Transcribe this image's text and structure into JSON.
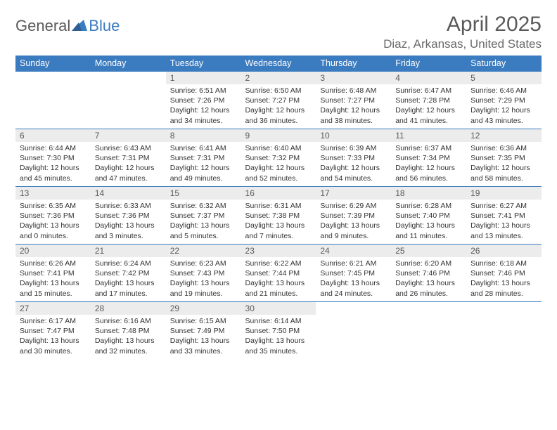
{
  "logo": {
    "text1": "General",
    "text2": "Blue"
  },
  "title": "April 2025",
  "location": "Diaz, Arkansas, United States",
  "weekdays": [
    "Sunday",
    "Monday",
    "Tuesday",
    "Wednesday",
    "Thursday",
    "Friday",
    "Saturday"
  ],
  "colors": {
    "header_bg": "#3b7bbf",
    "header_text": "#ffffff",
    "daynum_bg": "#ececec",
    "border": "#3b7bbf",
    "title_color": "#5a5a5a",
    "location_color": "#6a6a6a",
    "logo_gray": "#5a5a5a",
    "logo_blue": "#3b7bbf"
  },
  "fonts": {
    "title_size_pt": 22,
    "location_size_pt": 13,
    "weekday_size_pt": 9.5,
    "daynum_size_pt": 9,
    "body_size_pt": 8
  },
  "grid": {
    "rows": 5,
    "cols": 7,
    "start_weekday_index": 2,
    "days_in_month": 30
  },
  "days": [
    {
      "n": 1,
      "sunrise": "6:51 AM",
      "sunset": "7:26 PM",
      "daylight": "12 hours and 34 minutes."
    },
    {
      "n": 2,
      "sunrise": "6:50 AM",
      "sunset": "7:27 PM",
      "daylight": "12 hours and 36 minutes."
    },
    {
      "n": 3,
      "sunrise": "6:48 AM",
      "sunset": "7:27 PM",
      "daylight": "12 hours and 38 minutes."
    },
    {
      "n": 4,
      "sunrise": "6:47 AM",
      "sunset": "7:28 PM",
      "daylight": "12 hours and 41 minutes."
    },
    {
      "n": 5,
      "sunrise": "6:46 AM",
      "sunset": "7:29 PM",
      "daylight": "12 hours and 43 minutes."
    },
    {
      "n": 6,
      "sunrise": "6:44 AM",
      "sunset": "7:30 PM",
      "daylight": "12 hours and 45 minutes."
    },
    {
      "n": 7,
      "sunrise": "6:43 AM",
      "sunset": "7:31 PM",
      "daylight": "12 hours and 47 minutes."
    },
    {
      "n": 8,
      "sunrise": "6:41 AM",
      "sunset": "7:31 PM",
      "daylight": "12 hours and 49 minutes."
    },
    {
      "n": 9,
      "sunrise": "6:40 AM",
      "sunset": "7:32 PM",
      "daylight": "12 hours and 52 minutes."
    },
    {
      "n": 10,
      "sunrise": "6:39 AM",
      "sunset": "7:33 PM",
      "daylight": "12 hours and 54 minutes."
    },
    {
      "n": 11,
      "sunrise": "6:37 AM",
      "sunset": "7:34 PM",
      "daylight": "12 hours and 56 minutes."
    },
    {
      "n": 12,
      "sunrise": "6:36 AM",
      "sunset": "7:35 PM",
      "daylight": "12 hours and 58 minutes."
    },
    {
      "n": 13,
      "sunrise": "6:35 AM",
      "sunset": "7:36 PM",
      "daylight": "13 hours and 0 minutes."
    },
    {
      "n": 14,
      "sunrise": "6:33 AM",
      "sunset": "7:36 PM",
      "daylight": "13 hours and 3 minutes."
    },
    {
      "n": 15,
      "sunrise": "6:32 AM",
      "sunset": "7:37 PM",
      "daylight": "13 hours and 5 minutes."
    },
    {
      "n": 16,
      "sunrise": "6:31 AM",
      "sunset": "7:38 PM",
      "daylight": "13 hours and 7 minutes."
    },
    {
      "n": 17,
      "sunrise": "6:29 AM",
      "sunset": "7:39 PM",
      "daylight": "13 hours and 9 minutes."
    },
    {
      "n": 18,
      "sunrise": "6:28 AM",
      "sunset": "7:40 PM",
      "daylight": "13 hours and 11 minutes."
    },
    {
      "n": 19,
      "sunrise": "6:27 AM",
      "sunset": "7:41 PM",
      "daylight": "13 hours and 13 minutes."
    },
    {
      "n": 20,
      "sunrise": "6:26 AM",
      "sunset": "7:41 PM",
      "daylight": "13 hours and 15 minutes."
    },
    {
      "n": 21,
      "sunrise": "6:24 AM",
      "sunset": "7:42 PM",
      "daylight": "13 hours and 17 minutes."
    },
    {
      "n": 22,
      "sunrise": "6:23 AM",
      "sunset": "7:43 PM",
      "daylight": "13 hours and 19 minutes."
    },
    {
      "n": 23,
      "sunrise": "6:22 AM",
      "sunset": "7:44 PM",
      "daylight": "13 hours and 21 minutes."
    },
    {
      "n": 24,
      "sunrise": "6:21 AM",
      "sunset": "7:45 PM",
      "daylight": "13 hours and 24 minutes."
    },
    {
      "n": 25,
      "sunrise": "6:20 AM",
      "sunset": "7:46 PM",
      "daylight": "13 hours and 26 minutes."
    },
    {
      "n": 26,
      "sunrise": "6:18 AM",
      "sunset": "7:46 PM",
      "daylight": "13 hours and 28 minutes."
    },
    {
      "n": 27,
      "sunrise": "6:17 AM",
      "sunset": "7:47 PM",
      "daylight": "13 hours and 30 minutes."
    },
    {
      "n": 28,
      "sunrise": "6:16 AM",
      "sunset": "7:48 PM",
      "daylight": "13 hours and 32 minutes."
    },
    {
      "n": 29,
      "sunrise": "6:15 AM",
      "sunset": "7:49 PM",
      "daylight": "13 hours and 33 minutes."
    },
    {
      "n": 30,
      "sunrise": "6:14 AM",
      "sunset": "7:50 PM",
      "daylight": "13 hours and 35 minutes."
    }
  ],
  "labels": {
    "sunrise": "Sunrise:",
    "sunset": "Sunset:",
    "daylight": "Daylight:"
  }
}
